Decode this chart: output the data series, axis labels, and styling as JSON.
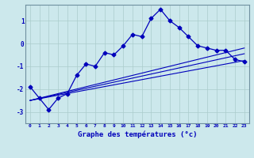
{
  "xlabel": "Graphe des températures (°c)",
  "background_color": "#cce8ec",
  "line_color": "#0000bb",
  "grid_color": "#aacccc",
  "xlim": [
    -0.5,
    23.5
  ],
  "ylim": [
    -3.5,
    1.7
  ],
  "yticks": [
    -3,
    -2,
    -1,
    0,
    1
  ],
  "xticks": [
    0,
    1,
    2,
    3,
    4,
    5,
    6,
    7,
    8,
    9,
    10,
    11,
    12,
    13,
    14,
    15,
    16,
    17,
    18,
    19,
    20,
    21,
    22,
    23
  ],
  "main_series_x": [
    0,
    1,
    2,
    3,
    4,
    5,
    6,
    7,
    8,
    9,
    10,
    11,
    12,
    13,
    14,
    15,
    16,
    17,
    18,
    19,
    20,
    21,
    22,
    23
  ],
  "main_series_y": [
    -1.9,
    -2.4,
    -2.9,
    -2.4,
    -2.2,
    -1.4,
    -0.9,
    -1.0,
    -0.4,
    -0.5,
    -0.1,
    0.4,
    0.3,
    1.1,
    1.5,
    1.0,
    0.7,
    0.3,
    -0.1,
    -0.2,
    -0.3,
    -0.3,
    -0.7,
    -0.8
  ],
  "line2_x": [
    0,
    23
  ],
  "line2_y": [
    -2.5,
    -0.75
  ],
  "line3_x": [
    0,
    23
  ],
  "line3_y": [
    -2.5,
    -0.45
  ],
  "line4_x": [
    0,
    23
  ],
  "line4_y": [
    -2.5,
    -0.2
  ]
}
